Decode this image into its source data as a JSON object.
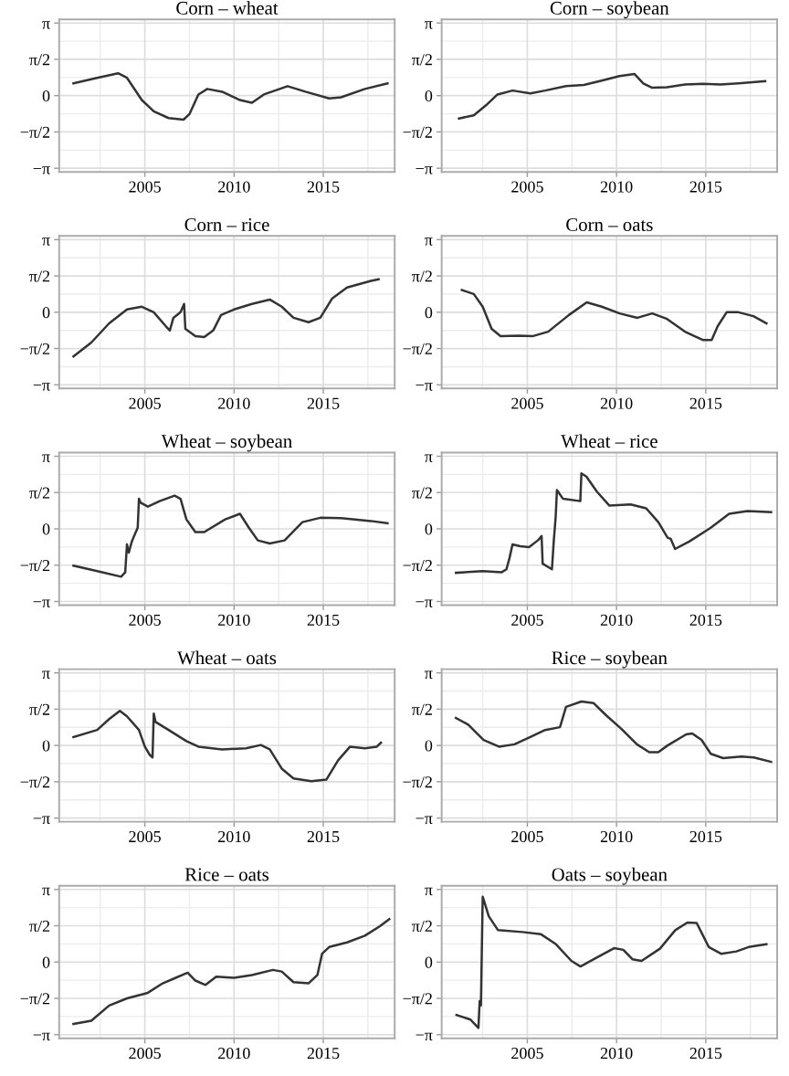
{
  "chart_data": [
    {
      "type": "line",
      "title": "Corn – wheat",
      "color": "#333333",
      "grid": true,
      "xlim": [
        2000.2,
        2019.0
      ],
      "ylim": [
        -3.3,
        3.3
      ],
      "xticks": [
        2005,
        2010,
        2015
      ],
      "yticks": [
        {
          "value": -3.1416,
          "label": "−π"
        },
        {
          "value": -1.5708,
          "label": "−π/2"
        },
        0,
        {
          "value": 1.5708,
          "label": "π/2"
        },
        {
          "value": 3.1416,
          "label": "π"
        }
      ],
      "x": [
        2001.0,
        2002.33,
        2003.5,
        2004.0,
        2004.83,
        2005.5,
        2006.33,
        2007.17,
        2007.5,
        2008.0,
        2008.5,
        2009.33,
        2010.33,
        2011.0,
        2011.67,
        2013.0,
        2014.0,
        2015.33,
        2016.0,
        2017.33,
        2018.6
      ],
      "values": [
        0.53,
        0.77,
        0.97,
        0.77,
        -0.19,
        -0.68,
        -0.97,
        -1.04,
        -0.8,
        0.05,
        0.29,
        0.17,
        -0.19,
        -0.31,
        0.05,
        0.41,
        0.17,
        -0.12,
        -0.07,
        0.29,
        0.53
      ]
    },
    {
      "type": "line",
      "title": "Corn – soybean",
      "color": "#333333",
      "grid": true,
      "xlim": [
        2000.2,
        2019.0
      ],
      "ylim": [
        -3.3,
        3.3
      ],
      "xticks": [
        2005,
        2010,
        2015
      ],
      "yticks": [
        {
          "value": -3.1416,
          "label": "−π"
        },
        {
          "value": -1.5708,
          "label": "−π/2"
        },
        0,
        {
          "value": 1.5708,
          "label": "π/2"
        },
        {
          "value": 3.1416,
          "label": "π"
        }
      ],
      "x": [
        2001.17,
        2002.0,
        2002.67,
        2003.33,
        2004.17,
        2005.17,
        2006.0,
        2007.17,
        2008.17,
        2009.17,
        2010.17,
        2011.0,
        2011.5,
        2012.0,
        2012.83,
        2013.83,
        2014.83,
        2015.83,
        2016.83,
        2018.33
      ],
      "values": [
        -0.99,
        -0.85,
        -0.43,
        0.05,
        0.22,
        0.1,
        0.22,
        0.41,
        0.46,
        0.65,
        0.85,
        0.94,
        0.53,
        0.34,
        0.36,
        0.48,
        0.51,
        0.48,
        0.53,
        0.63
      ]
    },
    {
      "type": "line",
      "title": "Corn – rice",
      "color": "#333333",
      "grid": true,
      "xlim": [
        2000.2,
        2019.0
      ],
      "ylim": [
        -3.3,
        3.3
      ],
      "xticks": [
        2005,
        2010,
        2015
      ],
      "yticks": [
        {
          "value": -3.1416,
          "label": "−π"
        },
        {
          "value": -1.5708,
          "label": "−π/2"
        },
        0,
        {
          "value": 1.5708,
          "label": "π/2"
        },
        {
          "value": 3.1416,
          "label": "π"
        }
      ],
      "x": [
        2001.0,
        2002.0,
        2003.0,
        2004.0,
        2004.83,
        2005.5,
        2006.17,
        2006.4,
        2006.6,
        2007.0,
        2007.2,
        2007.27,
        2007.83,
        2008.33,
        2008.83,
        2009.27,
        2010.0,
        2011.0,
        2012.0,
        2012.67,
        2013.33,
        2014.17,
        2014.83,
        2015.5,
        2016.33,
        2017.67,
        2018.1
      ],
      "values": [
        -1.91,
        -1.31,
        -0.48,
        0.12,
        0.24,
        0.0,
        -0.6,
        -0.79,
        -0.24,
        0.0,
        0.36,
        -0.72,
        -1.03,
        -1.07,
        -0.79,
        -0.12,
        0.12,
        0.36,
        0.55,
        0.24,
        -0.24,
        -0.43,
        -0.24,
        0.6,
        1.07,
        1.36,
        1.43
      ]
    },
    {
      "type": "line",
      "title": "Corn – oats",
      "color": "#333333",
      "grid": true,
      "xlim": [
        2000.2,
        2019.0
      ],
      "ylim": [
        -3.3,
        3.3
      ],
      "xticks": [
        2005,
        2010,
        2015
      ],
      "yticks": [
        {
          "value": -3.1416,
          "label": "−π"
        },
        {
          "value": -1.5708,
          "label": "−π/2"
        },
        0,
        {
          "value": 1.5708,
          "label": "π/2"
        },
        {
          "value": 3.1416,
          "label": "π"
        }
      ],
      "x": [
        2001.33,
        2002.0,
        2002.5,
        2003.0,
        2003.5,
        2004.5,
        2005.33,
        2006.17,
        2007.33,
        2008.33,
        2009.17,
        2010.17,
        2011.17,
        2012.0,
        2012.83,
        2013.83,
        2014.83,
        2015.33,
        2015.67,
        2016.17,
        2016.83,
        2017.67,
        2018.4
      ],
      "values": [
        0.96,
        0.79,
        0.24,
        -0.72,
        -1.03,
        -1.01,
        -1.03,
        -0.84,
        -0.12,
        0.43,
        0.24,
        -0.05,
        -0.24,
        -0.05,
        -0.29,
        -0.84,
        -1.2,
        -1.2,
        -0.6,
        0.0,
        0.0,
        -0.17,
        -0.48
      ]
    },
    {
      "type": "line",
      "title": "Wheat – soybean",
      "color": "#333333",
      "grid": true,
      "xlim": [
        2000.2,
        2019.0
      ],
      "ylim": [
        -3.3,
        3.3
      ],
      "xticks": [
        2005,
        2010,
        2015
      ],
      "yticks": [
        {
          "value": -3.1416,
          "label": "−π"
        },
        {
          "value": -1.5708,
          "label": "−π/2"
        },
        0,
        {
          "value": 1.5708,
          "label": "π/2"
        },
        {
          "value": 3.1416,
          "label": "π"
        }
      ],
      "x": [
        2001.0,
        2002.33,
        2003.67,
        2003.9,
        2004.0,
        2004.1,
        2004.27,
        2004.4,
        2004.6,
        2004.67,
        2004.77,
        2005.17,
        2005.83,
        2006.67,
        2007.0,
        2007.33,
        2007.83,
        2008.33,
        2009.5,
        2010.33,
        2010.83,
        2011.33,
        2012.0,
        2012.83,
        2013.83,
        2014.83,
        2016.0,
        2017.67,
        2018.6
      ],
      "values": [
        -1.59,
        -1.83,
        -2.07,
        -1.88,
        -0.67,
        -1.03,
        -0.55,
        -0.31,
        0.05,
        1.3,
        1.13,
        0.96,
        1.2,
        1.44,
        1.3,
        0.41,
        -0.14,
        -0.14,
        0.41,
        0.65,
        0.05,
        -0.5,
        -0.63,
        -0.5,
        0.29,
        0.48,
        0.46,
        0.34,
        0.24
      ]
    },
    {
      "type": "line",
      "title": "Wheat – rice",
      "color": "#333333",
      "grid": true,
      "xlim": [
        2000.2,
        2019.0
      ],
      "ylim": [
        -3.3,
        3.3
      ],
      "xticks": [
        2005,
        2010,
        2015
      ],
      "yticks": [
        {
          "value": -3.1416,
          "label": "−π"
        },
        {
          "value": -1.5708,
          "label": "−π/2"
        },
        0,
        {
          "value": 1.5708,
          "label": "π/2"
        },
        {
          "value": 3.1416,
          "label": "π"
        }
      ],
      "x": [
        2001.0,
        2002.5,
        2003.55,
        2003.83,
        2004.0,
        2004.17,
        2004.6,
        2005.1,
        2005.62,
        2005.8,
        2005.86,
        2006.38,
        2006.48,
        2006.59,
        2006.66,
        2007.0,
        2007.97,
        2008.03,
        2008.31,
        2008.9,
        2009.59,
        2010.79,
        2011.66,
        2012.34,
        2012.86,
        2013.03,
        2013.28,
        2014.07,
        2015.28,
        2016.31,
        2017.34,
        2018.66
      ],
      "values": [
        -1.9,
        -1.83,
        -1.88,
        -1.75,
        -1.27,
        -0.67,
        -0.75,
        -0.79,
        -0.48,
        -0.31,
        -1.51,
        -1.75,
        -0.55,
        0.53,
        1.68,
        1.3,
        1.2,
        2.4,
        2.26,
        1.61,
        1.01,
        1.06,
        0.89,
        0.29,
        -0.38,
        -0.43,
        -0.87,
        -0.55,
        0.05,
        0.65,
        0.77,
        0.72
      ]
    },
    {
      "type": "line",
      "title": "Wheat – oats",
      "color": "#333333",
      "grid": true,
      "xlim": [
        2000.2,
        2019.0
      ],
      "ylim": [
        -3.3,
        3.3
      ],
      "xticks": [
        2005,
        2010,
        2015
      ],
      "yticks": [
        {
          "value": -3.1416,
          "label": "−π"
        },
        {
          "value": -1.5708,
          "label": "−π/2"
        },
        0,
        {
          "value": 1.5708,
          "label": "π/2"
        },
        {
          "value": 3.1416,
          "label": "π"
        }
      ],
      "x": [
        2001.0,
        2002.33,
        2003.0,
        2003.6,
        2004.0,
        2004.67,
        2005.0,
        2005.27,
        2005.43,
        2005.5,
        2005.6,
        2006.33,
        2007.33,
        2008.0,
        2009.33,
        2010.67,
        2011.5,
        2012.0,
        2012.67,
        2013.33,
        2014.33,
        2015.17,
        2015.83,
        2016.5,
        2017.33,
        2018.0,
        2018.23
      ],
      "values": [
        0.36,
        0.67,
        1.14,
        1.5,
        1.26,
        0.67,
        -0.05,
        -0.4,
        -0.52,
        1.38,
        1.02,
        0.67,
        0.19,
        -0.05,
        -0.17,
        -0.12,
        0.02,
        -0.17,
        -1.0,
        -1.43,
        -1.55,
        -1.48,
        -0.64,
        -0.05,
        -0.12,
        -0.05,
        0.12
      ]
    },
    {
      "type": "line",
      "title": "Rice – soybean",
      "color": "#333333",
      "grid": true,
      "xlim": [
        2000.2,
        2019.0
      ],
      "ylim": [
        -3.3,
        3.3
      ],
      "xticks": [
        2005,
        2010,
        2015
      ],
      "yticks": [
        {
          "value": -3.1416,
          "label": "−π"
        },
        {
          "value": -1.5708,
          "label": "−π/2"
        },
        0,
        {
          "value": 1.5708,
          "label": "π/2"
        },
        {
          "value": 3.1416,
          "label": "π"
        }
      ],
      "x": [
        2001.0,
        2001.69,
        2002.55,
        2003.41,
        2004.28,
        2005.14,
        2006.0,
        2006.83,
        2007.17,
        2008.03,
        2008.72,
        2009.41,
        2010.28,
        2011.14,
        2011.83,
        2012.34,
        2012.86,
        2013.9,
        2014.24,
        2014.76,
        2015.28,
        2015.97,
        2017.0,
        2017.69,
        2018.66
      ],
      "values": [
        1.19,
        0.9,
        0.24,
        -0.05,
        0.05,
        0.36,
        0.67,
        0.79,
        1.67,
        1.9,
        1.83,
        1.31,
        0.71,
        0.05,
        -0.29,
        -0.29,
        0.0,
        0.48,
        0.52,
        0.24,
        -0.36,
        -0.55,
        -0.48,
        -0.52,
        -0.71
      ]
    },
    {
      "type": "line",
      "title": "Rice – oats",
      "color": "#333333",
      "grid": true,
      "xlim": [
        2000.2,
        2019.0
      ],
      "ylim": [
        -3.3,
        3.3
      ],
      "xticks": [
        2005,
        2010,
        2015
      ],
      "yticks": [
        {
          "value": -3.1416,
          "label": "−π"
        },
        {
          "value": -1.5708,
          "label": "−π/2"
        },
        0,
        {
          "value": 1.5708,
          "label": "π/2"
        },
        {
          "value": 3.1416,
          "label": "π"
        }
      ],
      "x": [
        2001.0,
        2002.0,
        2003.0,
        2004.0,
        2005.17,
        2006.0,
        2006.67,
        2007.4,
        2007.83,
        2008.4,
        2009.0,
        2010.0,
        2011.0,
        2012.17,
        2012.67,
        2013.33,
        2014.17,
        2014.67,
        2014.93,
        2015.33,
        2016.33,
        2017.33,
        2018.17,
        2018.7
      ],
      "values": [
        -2.68,
        -2.54,
        -1.88,
        -1.57,
        -1.33,
        -0.92,
        -0.7,
        -0.46,
        -0.8,
        -0.99,
        -0.63,
        -0.68,
        -0.56,
        -0.34,
        -0.41,
        -0.87,
        -0.92,
        -0.56,
        0.36,
        0.65,
        0.85,
        1.14,
        1.55,
        1.86
      ]
    },
    {
      "type": "line",
      "title": "Oats – soybean",
      "color": "#333333",
      "grid": true,
      "xlim": [
        2000.2,
        2019.0
      ],
      "ylim": [
        -3.3,
        3.3
      ],
      "xticks": [
        2005,
        2010,
        2015
      ],
      "yticks": [
        {
          "value": -3.1416,
          "label": "−π"
        },
        {
          "value": -1.5708,
          "label": "−π/2"
        },
        0,
        {
          "value": 1.5708,
          "label": "π/2"
        },
        {
          "value": 3.1416,
          "label": "π"
        }
      ],
      "x": [
        2001.03,
        2001.82,
        2002.26,
        2002.33,
        2002.4,
        2002.5,
        2002.84,
        2003.36,
        2004.73,
        2005.75,
        2006.61,
        2007.47,
        2007.98,
        2008.84,
        2009.86,
        2010.38,
        2010.89,
        2011.4,
        2012.43,
        2013.29,
        2013.97,
        2014.49,
        2015.17,
        2015.86,
        2016.71,
        2017.4,
        2018.4
      ],
      "values": [
        -2.29,
        -2.49,
        -2.85,
        -1.69,
        -1.88,
        2.83,
        1.98,
        1.38,
        1.3,
        1.21,
        0.77,
        0.05,
        -0.19,
        0.17,
        0.6,
        0.53,
        0.12,
        0.05,
        0.58,
        1.38,
        1.71,
        1.69,
        0.65,
        0.36,
        0.46,
        0.65,
        0.77
      ]
    }
  ]
}
